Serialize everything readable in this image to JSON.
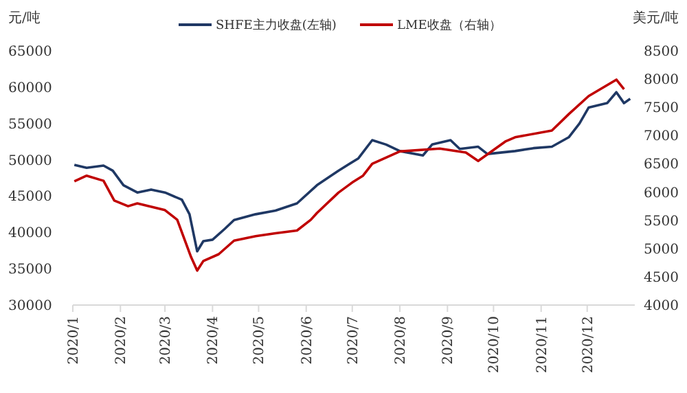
{
  "chart_data": {
    "type": "line",
    "ylabel": "元/吨",
    "y2label": "美元/吨",
    "legend": "top",
    "grid": false,
    "xlim": [
      "2020-01-01",
      "2021-01-01"
    ],
    "xticks": [
      {
        "value": "2020-01-01",
        "label": "2020/1"
      },
      {
        "value": "2020-02-01",
        "label": "2020/2"
      },
      {
        "value": "2020-03-01",
        "label": "2020/3"
      },
      {
        "value": "2020-04-01",
        "label": "2020/4"
      },
      {
        "value": "2020-05-01",
        "label": "2020/5"
      },
      {
        "value": "2020-06-01",
        "label": "2020/6"
      },
      {
        "value": "2020-07-01",
        "label": "2020/7"
      },
      {
        "value": "2020-08-01",
        "label": "2020/8"
      },
      {
        "value": "2020-09-01",
        "label": "2020/9"
      },
      {
        "value": "2020-10-01",
        "label": "2020/10"
      },
      {
        "value": "2020-11-01",
        "label": "2020/11"
      },
      {
        "value": "2020-12-01",
        "label": "2020/12"
      }
    ],
    "ylim": [
      30000,
      65000
    ],
    "yticks": [
      30000,
      35000,
      40000,
      45000,
      50000,
      55000,
      60000,
      65000
    ],
    "y2lim": [
      4000,
      8500
    ],
    "y2ticks": [
      4000,
      4500,
      5000,
      5500,
      6000,
      6500,
      7000,
      7500,
      8000,
      8500
    ],
    "series": [
      {
        "name": "SHFE主力收盘(左轴)",
        "color": "#1f3864",
        "x": [
          "2020-01-02",
          "2020-01-10",
          "2020-01-21",
          "2020-01-27",
          "2020-02-03",
          "2020-02-12",
          "2020-02-21",
          "2020-03-01",
          "2020-03-12",
          "2020-03-17",
          "2020-03-22",
          "2020-03-26",
          "2020-04-01",
          "2020-04-09",
          "2020-04-15",
          "2020-04-29",
          "2020-05-12",
          "2020-05-26",
          "2020-06-08",
          "2020-06-22",
          "2020-07-05",
          "2020-07-14",
          "2020-07-23",
          "2020-08-01",
          "2020-08-16",
          "2020-08-22",
          "2020-09-03",
          "2020-09-09",
          "2020-09-21",
          "2020-09-27",
          "2020-10-15",
          "2020-10-27",
          "2020-11-08",
          "2020-11-19",
          "2020-11-26",
          "2020-12-02",
          "2020-12-14",
          "2020-12-20",
          "2020-12-25",
          "2020-12-29"
        ],
        "values": [
          49300,
          48900,
          49200,
          48500,
          46500,
          45500,
          45900,
          45500,
          44500,
          42500,
          37400,
          38800,
          39000,
          40500,
          41700,
          42500,
          43000,
          44000,
          46500,
          48500,
          50200,
          52700,
          52100,
          51200,
          50600,
          52100,
          52700,
          51500,
          51800,
          50800,
          51200,
          51600,
          51800,
          53100,
          55000,
          57200,
          57800,
          59300,
          57800,
          58400
        ]
      },
      {
        "name": "LME收盘（右轴）",
        "color": "#c00000",
        "axis": "y2",
        "x": [
          "2020-01-02",
          "2020-01-10",
          "2020-01-21",
          "2020-01-28",
          "2020-02-06",
          "2020-02-12",
          "2020-03-01",
          "2020-03-09",
          "2020-03-18",
          "2020-03-22",
          "2020-03-26",
          "2020-04-05",
          "2020-04-15",
          "2020-04-29",
          "2020-05-12",
          "2020-05-26",
          "2020-06-04",
          "2020-06-08",
          "2020-06-22",
          "2020-07-01",
          "2020-07-08",
          "2020-07-14",
          "2020-08-01",
          "2020-08-27",
          "2020-09-13",
          "2020-09-21",
          "2020-10-09",
          "2020-10-15",
          "2020-11-08",
          "2020-11-19",
          "2020-12-02",
          "2020-12-20",
          "2020-12-25"
        ],
        "values": [
          6190,
          6290,
          6200,
          5850,
          5750,
          5800,
          5680,
          5510,
          4850,
          4610,
          4780,
          4900,
          5140,
          5220,
          5270,
          5320,
          5510,
          5630,
          5990,
          6170,
          6290,
          6500,
          6720,
          6770,
          6700,
          6550,
          6900,
          6970,
          7090,
          7380,
          7700,
          7990,
          7820
        ]
      }
    ]
  }
}
